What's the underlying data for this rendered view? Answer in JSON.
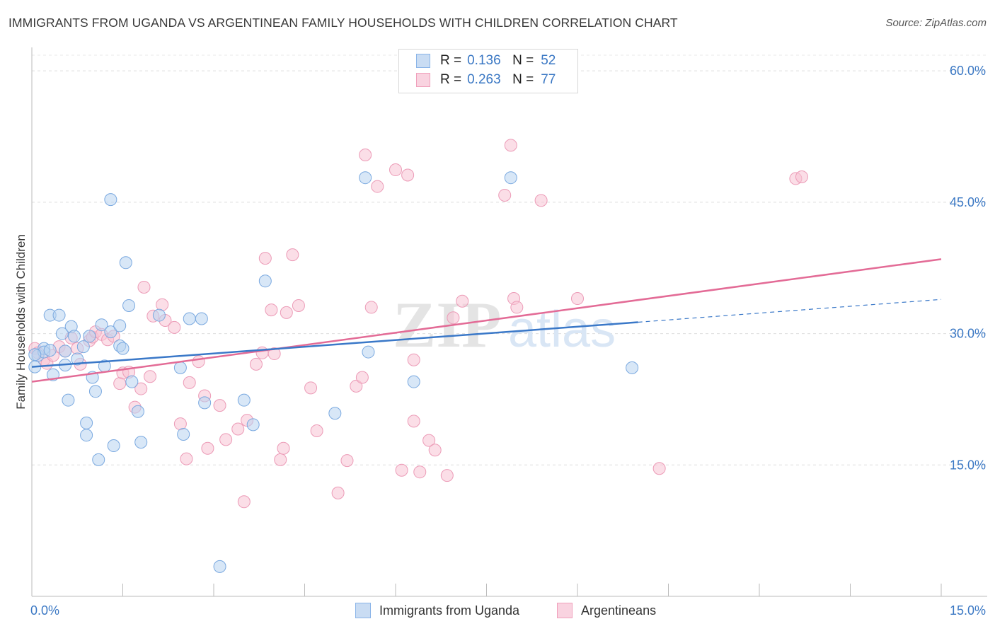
{
  "title": "IMMIGRANTS FROM UGANDA VS ARGENTINEAN FAMILY HOUSEHOLDS WITH CHILDREN CORRELATION CHART",
  "source": "Source: ZipAtlas.com",
  "watermark": {
    "zip": "ZIP",
    "atlas": "atlas"
  },
  "legend_top": [
    {
      "r_label": "R =",
      "r_value": "0.136",
      "n_label": "N =",
      "n_value": "52",
      "color": "#8ab4e8"
    },
    {
      "r_label": "R =",
      "r_value": "0.263",
      "n_label": "N =",
      "n_value": "77",
      "color": "#f0a0bb"
    }
  ],
  "legend_bottom": [
    {
      "label": "Immigrants from Uganda",
      "color": "#8ab4e8"
    },
    {
      "label": "Argentineans",
      "color": "#f0a0bb"
    }
  ],
  "chart_data": {
    "type": "scatter",
    "xlabel": "",
    "ylabel": "Family Households with Children",
    "xlim": [
      0,
      15
    ],
    "ylim": [
      0,
      63
    ],
    "x_tick_labels": [
      "0.0%",
      "15.0%"
    ],
    "y_ticks": [
      15,
      30,
      45,
      60
    ],
    "y_tick_labels": [
      "15.0%",
      "30.0%",
      "45.0%",
      "60.0%"
    ],
    "grid": true,
    "legend_position": "top-center",
    "colors": {
      "uganda": "#3a78c8",
      "argentineans": "#e36b96",
      "uganda_fill": "#b8d3f1",
      "argentineans_fill": "#f7c2d3",
      "tick_label": "#3b78c4"
    },
    "series": [
      {
        "name": "Immigrants from Uganda",
        "trend": {
          "x": [
            0,
            10.0
          ],
          "y": [
            26.2,
            31.3
          ],
          "dashed_to": [
            15,
            33.9
          ]
        },
        "points": [
          [
            0.05,
            26.2
          ],
          [
            0.1,
            27.5
          ],
          [
            0.2,
            28.3
          ],
          [
            0.2,
            27.9
          ],
          [
            0.3,
            28.1
          ],
          [
            0.3,
            32.1
          ],
          [
            0.35,
            25.3
          ],
          [
            0.45,
            32.1
          ],
          [
            0.5,
            30.0
          ],
          [
            0.55,
            26.4
          ],
          [
            0.55,
            28.0
          ],
          [
            0.6,
            22.4
          ],
          [
            0.65,
            30.8
          ],
          [
            0.7,
            29.7
          ],
          [
            0.75,
            27.1
          ],
          [
            0.85,
            28.5
          ],
          [
            0.9,
            18.4
          ],
          [
            0.9,
            19.8
          ],
          [
            0.95,
            29.7
          ],
          [
            1.0,
            25.0
          ],
          [
            1.05,
            23.4
          ],
          [
            1.1,
            15.6
          ],
          [
            1.15,
            31.0
          ],
          [
            1.2,
            26.3
          ],
          [
            1.3,
            30.2
          ],
          [
            1.3,
            45.3
          ],
          [
            1.35,
            17.2
          ],
          [
            1.45,
            28.6
          ],
          [
            1.45,
            30.9
          ],
          [
            1.5,
            28.3
          ],
          [
            1.55,
            38.1
          ],
          [
            1.6,
            33.2
          ],
          [
            1.65,
            24.5
          ],
          [
            1.75,
            21.1
          ],
          [
            1.8,
            17.6
          ],
          [
            2.1,
            32.1
          ],
          [
            2.45,
            26.1
          ],
          [
            2.5,
            18.5
          ],
          [
            2.6,
            31.7
          ],
          [
            2.8,
            31.7
          ],
          [
            2.85,
            22.1
          ],
          [
            3.1,
            3.4
          ],
          [
            3.5,
            22.4
          ],
          [
            3.65,
            19.6
          ],
          [
            3.85,
            36.0
          ],
          [
            5.0,
            20.9
          ],
          [
            5.5,
            47.8
          ],
          [
            5.55,
            27.9
          ],
          [
            6.3,
            24.5
          ],
          [
            7.9,
            47.8
          ],
          [
            9.9,
            26.1
          ],
          [
            0.05,
            27.6
          ]
        ]
      },
      {
        "name": "Argentineans",
        "trend": {
          "x": [
            0,
            15
          ],
          "y": [
            24.5,
            38.5
          ]
        },
        "points": [
          [
            0.05,
            28.3
          ],
          [
            0.1,
            27.8
          ],
          [
            0.2,
            27.0
          ],
          [
            0.25,
            26.6
          ],
          [
            0.35,
            27.5
          ],
          [
            0.45,
            28.5
          ],
          [
            0.55,
            28.0
          ],
          [
            0.65,
            29.5
          ],
          [
            0.75,
            28.3
          ],
          [
            0.8,
            26.5
          ],
          [
            0.95,
            29.2
          ],
          [
            1.0,
            29.6
          ],
          [
            1.05,
            30.2
          ],
          [
            1.15,
            29.9
          ],
          [
            1.25,
            29.3
          ],
          [
            1.35,
            29.7
          ],
          [
            1.45,
            24.3
          ],
          [
            1.5,
            25.5
          ],
          [
            1.6,
            25.6
          ],
          [
            1.7,
            21.6
          ],
          [
            1.8,
            23.7
          ],
          [
            1.85,
            35.3
          ],
          [
            1.95,
            25.1
          ],
          [
            2.0,
            32.0
          ],
          [
            2.15,
            33.3
          ],
          [
            2.2,
            31.5
          ],
          [
            2.35,
            30.7
          ],
          [
            2.45,
            19.7
          ],
          [
            2.55,
            15.7
          ],
          [
            2.6,
            24.4
          ],
          [
            2.75,
            26.8
          ],
          [
            2.85,
            22.9
          ],
          [
            2.9,
            16.9
          ],
          [
            3.1,
            21.8
          ],
          [
            3.2,
            17.9
          ],
          [
            3.4,
            19.1
          ],
          [
            3.55,
            20.1
          ],
          [
            3.7,
            26.5
          ],
          [
            3.8,
            27.8
          ],
          [
            3.85,
            38.6
          ],
          [
            3.95,
            32.7
          ],
          [
            4.0,
            27.7
          ],
          [
            4.1,
            15.6
          ],
          [
            4.15,
            16.9
          ],
          [
            4.2,
            32.4
          ],
          [
            4.3,
            39.0
          ],
          [
            4.4,
            33.2
          ],
          [
            4.6,
            23.8
          ],
          [
            4.7,
            18.9
          ],
          [
            5.05,
            11.8
          ],
          [
            5.2,
            15.5
          ],
          [
            5.35,
            24.0
          ],
          [
            5.45,
            25.0
          ],
          [
            5.5,
            50.4
          ],
          [
            5.6,
            33.0
          ],
          [
            5.7,
            46.8
          ],
          [
            6.0,
            48.7
          ],
          [
            6.1,
            14.4
          ],
          [
            6.2,
            48.1
          ],
          [
            6.3,
            20.0
          ],
          [
            6.4,
            14.2
          ],
          [
            6.55,
            17.8
          ],
          [
            6.65,
            16.7
          ],
          [
            6.85,
            13.8
          ],
          [
            6.95,
            31.8
          ],
          [
            7.1,
            33.7
          ],
          [
            7.8,
            45.8
          ],
          [
            7.9,
            51.5
          ],
          [
            7.95,
            34.0
          ],
          [
            8.0,
            33.0
          ],
          [
            8.4,
            45.2
          ],
          [
            9.0,
            34.0
          ],
          [
            10.35,
            14.6
          ],
          [
            12.6,
            47.7
          ],
          [
            12.7,
            47.9
          ],
          [
            6.3,
            27.0
          ],
          [
            3.5,
            10.8
          ]
        ]
      }
    ]
  }
}
